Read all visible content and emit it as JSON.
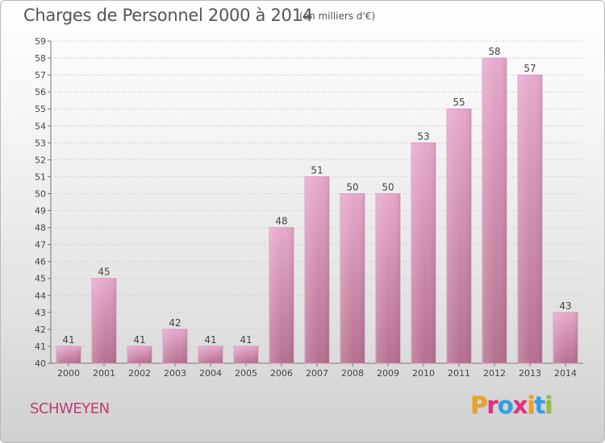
{
  "header": {
    "title": "Charges de Personnel 2000 à 2014",
    "unit": "(en milliers d'€)"
  },
  "footer": {
    "town": "SCHWEYEN",
    "logo_text": "Proxiti",
    "logo_letters": [
      "P",
      "r",
      "o",
      "x",
      "i",
      "t",
      "i"
    ],
    "logo_colors": [
      "#f0a020",
      "#e03080",
      "#30a0e0",
      "#e03080",
      "#f0a020",
      "#30a0e0",
      "#90c030"
    ]
  },
  "colors": {
    "bar_light": "#f0b6d6",
    "bar_mid": "#e4a2c6",
    "bar_dark": "#b5708f",
    "title_text": "#555555",
    "town_text": "#c13a73"
  },
  "chart_data": {
    "type": "bar",
    "title": "Charges de Personnel 2000 à 2014",
    "subtitle": "(en milliers d'€)",
    "xlabel": "",
    "ylabel": "",
    "categories": [
      "2000",
      "2001",
      "2002",
      "2003",
      "2004",
      "2005",
      "2006",
      "2007",
      "2008",
      "2009",
      "2010",
      "2011",
      "2012",
      "2013",
      "2014"
    ],
    "values": [
      41,
      45,
      41,
      42,
      41,
      41,
      48,
      51,
      50,
      50,
      53,
      55,
      58,
      57,
      43
    ],
    "ylim": [
      40,
      59
    ],
    "yticks": [
      40,
      41,
      42,
      43,
      44,
      45,
      46,
      47,
      48,
      49,
      50,
      51,
      52,
      53,
      54,
      55,
      56,
      57,
      58,
      59
    ],
    "grid": true,
    "legend": "none"
  }
}
